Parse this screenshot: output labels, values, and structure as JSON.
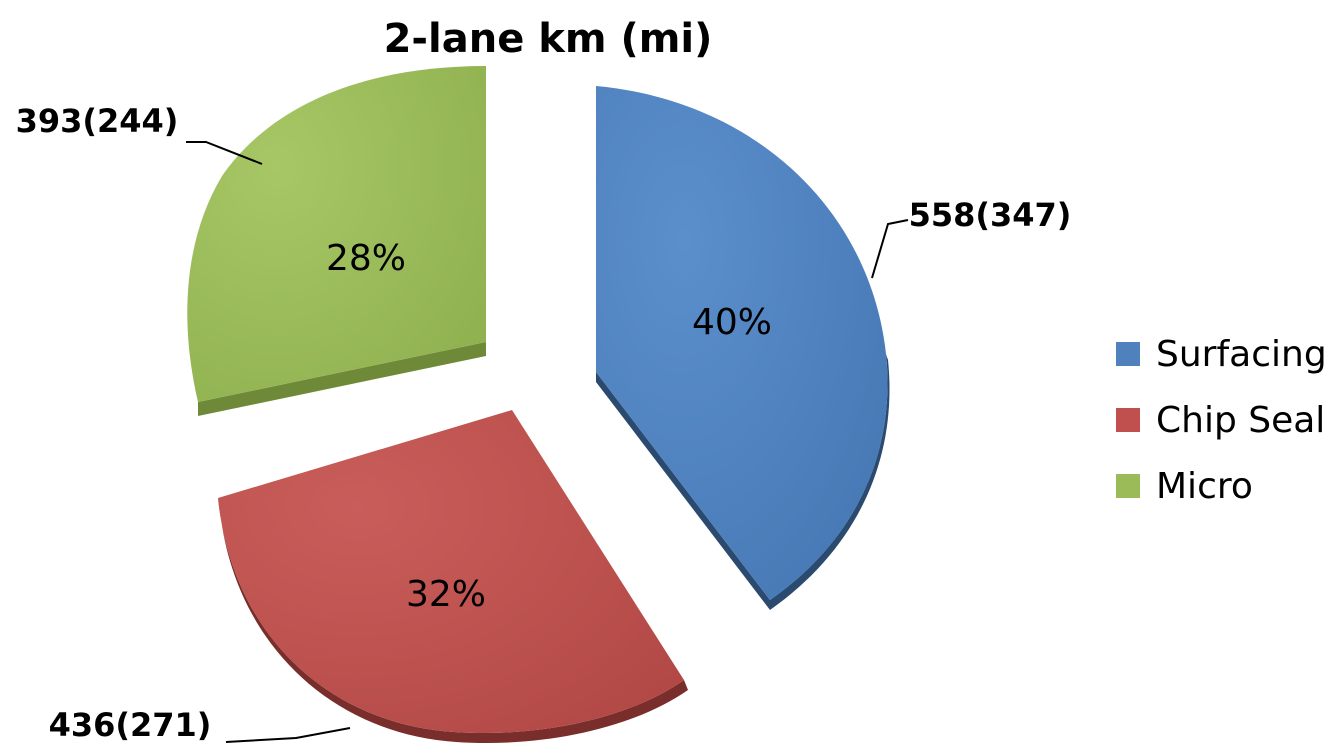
{
  "chart_data": {
    "type": "pie",
    "title": "2-lane km (mi)",
    "legend_position": "right",
    "exploded": true,
    "three_d": true,
    "slices": [
      {
        "name": "Surfacing",
        "value": 558,
        "value_label": "558(347)",
        "percent_label": "40%",
        "color": "#4F81BD",
        "side_color": "#2B4A70"
      },
      {
        "name": "Chip Seal",
        "value": 436,
        "value_label": "436(271)",
        "percent_label": "32%",
        "color": "#C0504D",
        "side_color": "#7A2E2C"
      },
      {
        "name": "Micro",
        "value": 393,
        "value_label": "393(244)",
        "percent_label": "28%",
        "color": "#9BBB59",
        "side_color": "#6E8A38"
      }
    ]
  }
}
